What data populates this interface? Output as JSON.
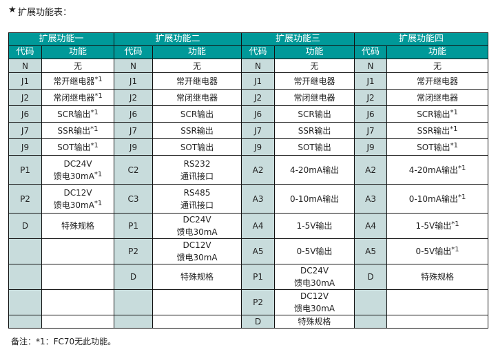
{
  "title": "扩展功能表：",
  "title_icon": "star-icon",
  "groups": [
    "扩展功能一",
    "扩展功能二",
    "扩展功能三",
    "扩展功能四"
  ],
  "col_code": "代码",
  "col_func": "功能",
  "colors": {
    "header": "#009999",
    "code_cell": "#c8dcdc"
  },
  "rows": [
    [
      {
        "code": "N",
        "func": "无"
      },
      {
        "code": "N",
        "func": "无"
      },
      {
        "code": "N",
        "func": "无"
      },
      {
        "code": "N",
        "func": "无"
      }
    ],
    [
      {
        "code": "J1",
        "func": "常开继电器",
        "sup": "*1"
      },
      {
        "code": "J1",
        "func": "常开继电器"
      },
      {
        "code": "J1",
        "func": "常开继电器"
      },
      {
        "code": "J1",
        "func": "常开继电器"
      }
    ],
    [
      {
        "code": "J2",
        "func": "常闭继电器",
        "sup": "*1"
      },
      {
        "code": "J2",
        "func": "常闭继电器"
      },
      {
        "code": "J2",
        "func": "常闭继电器"
      },
      {
        "code": "J2",
        "func": "常闭继电器"
      }
    ],
    [
      {
        "code": "J6",
        "func": "SCR输出",
        "sup": "*1"
      },
      {
        "code": "J6",
        "func": "SCR输出"
      },
      {
        "code": "J6",
        "func": "SCR输出"
      },
      {
        "code": "J6",
        "func": "SCR输出",
        "sup": "*1"
      }
    ],
    [
      {
        "code": "J7",
        "func": "SSR输出",
        "sup": "*1"
      },
      {
        "code": "J7",
        "func": "SSR输出"
      },
      {
        "code": "J7",
        "func": "SSR输出"
      },
      {
        "code": "J7",
        "func": "SSR输出",
        "sup": "*1"
      }
    ],
    [
      {
        "code": "J9",
        "func": "SOT输出",
        "sup": "*1"
      },
      {
        "code": "J9",
        "func": "SOT输出"
      },
      {
        "code": "J9",
        "func": "SOT输出"
      },
      {
        "code": "J9",
        "func": "SOT输出",
        "sup": "*1"
      }
    ],
    [
      {
        "code": "P1",
        "func": "DC24V\n馈电30mA",
        "sup": "*1"
      },
      {
        "code": "C2",
        "func": "RS232\n通讯接口"
      },
      {
        "code": "A2",
        "func": "4-20mA输出"
      },
      {
        "code": "A2",
        "func": "4-20mA输出",
        "sup": "*1"
      }
    ],
    [
      {
        "code": "P2",
        "func": "DC12V\n馈电30mA",
        "sup": "*1"
      },
      {
        "code": "C3",
        "func": "RS485\n通讯接口"
      },
      {
        "code": "A3",
        "func": "0-10mA输出"
      },
      {
        "code": "A3",
        "func": "0-10mA输出",
        "sup": "*1"
      }
    ],
    [
      {
        "code": "D",
        "func": "特殊规格"
      },
      {
        "code": "P1",
        "func": "DC24V\n馈电30mA"
      },
      {
        "code": "A4",
        "func": "1-5V输出"
      },
      {
        "code": "A4",
        "func": "1-5V输出",
        "sup": "*1"
      }
    ],
    [
      {
        "code": "",
        "func": ""
      },
      {
        "code": "P2",
        "func": "DC12V\n馈电30mA"
      },
      {
        "code": "A5",
        "func": "0-5V输出"
      },
      {
        "code": "A5",
        "func": "0-5V输出",
        "sup": "*1"
      }
    ],
    [
      {
        "code": "",
        "func": ""
      },
      {
        "code": "D",
        "func": "特殊规格"
      },
      {
        "code": "P1",
        "func": "DC24V\n馈电30mA"
      },
      {
        "code": "D",
        "func": "特殊规格"
      }
    ],
    [
      {
        "code": "",
        "func": ""
      },
      {
        "code": "",
        "func": ""
      },
      {
        "code": "P2",
        "func": "DC12V\n馈电30mA"
      },
      {
        "code": "",
        "func": ""
      }
    ],
    [
      {
        "code": "",
        "func": ""
      },
      {
        "code": "",
        "func": ""
      },
      {
        "code": "D",
        "func": "特殊规格"
      },
      {
        "code": "",
        "func": ""
      }
    ]
  ],
  "note": "备注：*1：FC70无此功能。"
}
